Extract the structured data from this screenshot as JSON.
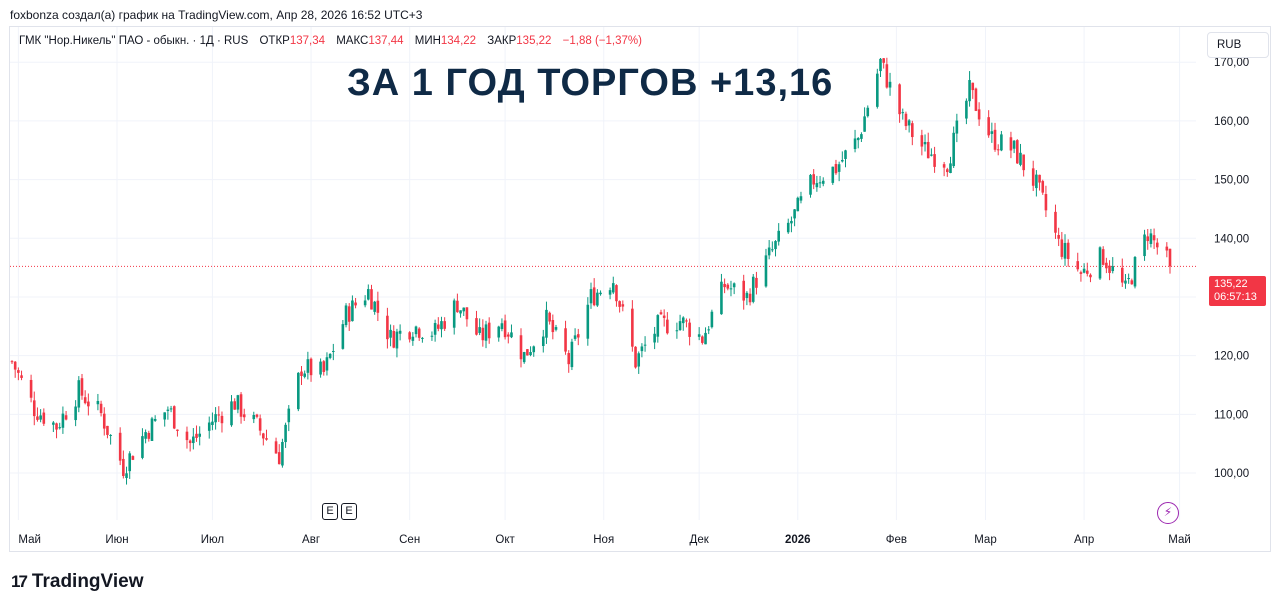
{
  "header": {
    "credit": "foxbonza создал(а) график на TradingView.com, Апр 28, 2026 16:52 UTC+3"
  },
  "legend": {
    "instrument": "ГМК \"Нор.Никель\" ПАО - обыкн. · 1Д · RUS",
    "open_label": "ОТКР",
    "open_value": "137,34",
    "high_label": "МАКС",
    "high_value": "137,44",
    "low_label": "МИН",
    "low_value": "134,22",
    "close_label": "ЗАКР",
    "close_value": "135,22",
    "change": "−1,88 (−1,37%)"
  },
  "currency": "RUB",
  "annotation": "ЗА 1 ГОД ТОРГОВ +13,16",
  "price_badge": {
    "price": "135,22",
    "countdown": "06:57:13"
  },
  "events": [
    "E",
    "E"
  ],
  "logo": {
    "mark": "17",
    "text": "TradingView"
  },
  "colors": {
    "up": "#089981",
    "down": "#f23645",
    "grid": "#f0f3fa",
    "price_line": "#f23645"
  },
  "chart_data": {
    "type": "candlestick",
    "ylim": [
      92,
      176
    ],
    "y_ticks": [
      100,
      110,
      120,
      130,
      140,
      150,
      160,
      170
    ],
    "y_tick_labels": [
      "100,00",
      "110,00",
      "120,00",
      "130,00",
      "140,00",
      "150,00",
      "160,00",
      "170,00"
    ],
    "x_tick_labels": [
      "Май",
      "Июн",
      "Июл",
      "Авг",
      "Сен",
      "Окт",
      "Ноя",
      "Дек",
      "2026",
      "Фев",
      "Мар",
      "Апр",
      "Май"
    ],
    "last_price": 135.22,
    "series": [
      {
        "date": "2025-04-29",
        "close": 119
      },
      {
        "date": "2025-05-06",
        "close": 111
      },
      {
        "date": "2025-05-13",
        "close": 108
      },
      {
        "date": "2025-05-20",
        "close": 114
      },
      {
        "date": "2025-05-27",
        "close": 110
      },
      {
        "date": "2025-06-03",
        "close": 101
      },
      {
        "date": "2025-06-10",
        "close": 107
      },
      {
        "date": "2025-06-17",
        "close": 111
      },
      {
        "date": "2025-06-24",
        "close": 105
      },
      {
        "date": "2025-07-01",
        "close": 109
      },
      {
        "date": "2025-07-08",
        "close": 112
      },
      {
        "date": "2025-07-15",
        "close": 108
      },
      {
        "date": "2025-07-22",
        "close": 103
      },
      {
        "date": "2025-07-29",
        "close": 118
      },
      {
        "date": "2025-08-05",
        "close": 117
      },
      {
        "date": "2025-08-12",
        "close": 127
      },
      {
        "date": "2025-08-19",
        "close": 131
      },
      {
        "date": "2025-08-26",
        "close": 123
      },
      {
        "date": "2025-09-02",
        "close": 125
      },
      {
        "date": "2025-09-09",
        "close": 124
      },
      {
        "date": "2025-09-16",
        "close": 129
      },
      {
        "date": "2025-09-23",
        "close": 123
      },
      {
        "date": "2025-09-30",
        "close": 126
      },
      {
        "date": "2025-10-07",
        "close": 120
      },
      {
        "date": "2025-10-14",
        "close": 126
      },
      {
        "date": "2025-10-21",
        "close": 119
      },
      {
        "date": "2025-10-28",
        "close": 130
      },
      {
        "date": "2025-11-04",
        "close": 133
      },
      {
        "date": "2025-11-11",
        "close": 119
      },
      {
        "date": "2025-11-18",
        "close": 125
      },
      {
        "date": "2025-11-25",
        "close": 126
      },
      {
        "date": "2025-12-02",
        "close": 123
      },
      {
        "date": "2025-12-09",
        "close": 132
      },
      {
        "date": "2025-12-16",
        "close": 130
      },
      {
        "date": "2025-12-23",
        "close": 137
      },
      {
        "date": "2025-12-30",
        "close": 143
      },
      {
        "date": "2026-01-06",
        "close": 150
      },
      {
        "date": "2026-01-13",
        "close": 152
      },
      {
        "date": "2026-01-20",
        "close": 157
      },
      {
        "date": "2026-01-27",
        "close": 170
      },
      {
        "date": "2026-02-03",
        "close": 160
      },
      {
        "date": "2026-02-10",
        "close": 155
      },
      {
        "date": "2026-02-17",
        "close": 153
      },
      {
        "date": "2026-02-24",
        "close": 165
      },
      {
        "date": "2026-03-03",
        "close": 157
      },
      {
        "date": "2026-03-10",
        "close": 155
      },
      {
        "date": "2026-03-17",
        "close": 149
      },
      {
        "date": "2026-03-24",
        "close": 139
      },
      {
        "date": "2026-03-31",
        "close": 134
      },
      {
        "date": "2026-04-07",
        "close": 137
      },
      {
        "date": "2026-04-14",
        "close": 131
      },
      {
        "date": "2026-04-21",
        "close": 141
      },
      {
        "date": "2026-04-28",
        "close": 135.22
      }
    ]
  }
}
